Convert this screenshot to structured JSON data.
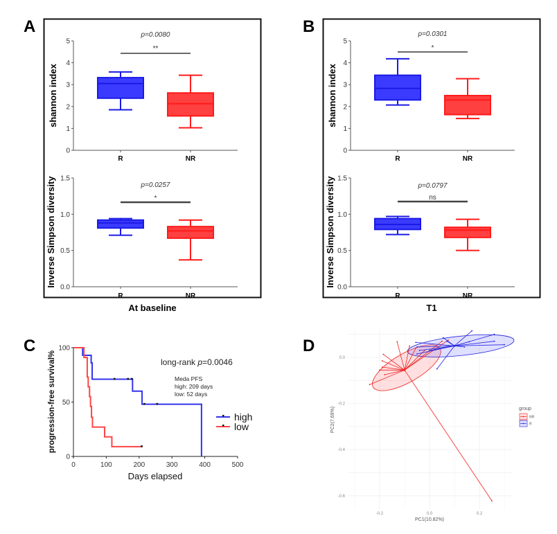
{
  "colors": {
    "R": "#1a1ae6",
    "R_fill": "#3b3bff",
    "NR": "#ff1a1a",
    "NR_fill": "#ff4040",
    "high": "#3333ee",
    "low": "#ff4444"
  },
  "chart_data": [
    {
      "id": "A-top",
      "panel": "A",
      "type": "box",
      "title": "",
      "xlabel": "",
      "ylabel": "shannon index",
      "ylim": [
        0,
        5
      ],
      "yticks": [
        "0",
        "1",
        "2",
        "3",
        "4",
        "5"
      ],
      "categories": [
        "R",
        "NR"
      ],
      "boxes": [
        {
          "name": "R",
          "min": 1.85,
          "q1": 2.38,
          "median": 3.05,
          "q3": 3.32,
          "max": 3.58
        },
        {
          "name": "NR",
          "min": 1.03,
          "q1": 1.57,
          "median": 2.13,
          "q3": 2.62,
          "max": 3.43
        }
      ],
      "p_value": "p=0.0080",
      "significance": "**"
    },
    {
      "id": "A-bottom",
      "panel": "A",
      "type": "box",
      "title": "",
      "xlabel": "At baseline",
      "ylabel": "Inverse Simpson diversity",
      "ylim": [
        0,
        1.5
      ],
      "yticks": [
        "0.0",
        "0.5",
        "1.0",
        "1.5"
      ],
      "categories": [
        "R",
        "NR"
      ],
      "boxes": [
        {
          "name": "R",
          "min": 0.71,
          "q1": 0.81,
          "median": 0.88,
          "q3": 0.92,
          "max": 0.94
        },
        {
          "name": "NR",
          "min": 0.37,
          "q1": 0.67,
          "median": 0.77,
          "q3": 0.83,
          "max": 0.92
        }
      ],
      "p_value": "p=0.0257",
      "significance": "*"
    },
    {
      "id": "B-top",
      "panel": "B",
      "type": "box",
      "title": "",
      "xlabel": "",
      "ylabel": "shannon index",
      "ylim": [
        0,
        5
      ],
      "yticks": [
        "0",
        "1",
        "2",
        "3",
        "4",
        "5"
      ],
      "categories": [
        "R",
        "NR"
      ],
      "boxes": [
        {
          "name": "R",
          "min": 2.07,
          "q1": 2.3,
          "median": 2.83,
          "q3": 3.43,
          "max": 4.18
        },
        {
          "name": "NR",
          "min": 1.45,
          "q1": 1.63,
          "median": 2.3,
          "q3": 2.5,
          "max": 3.27
        }
      ],
      "p_value": "p=0.0301",
      "significance": "*"
    },
    {
      "id": "B-bottom",
      "panel": "B",
      "type": "box",
      "title": "",
      "xlabel": "T1",
      "ylabel": "Inverse Simpson diversity",
      "ylim": [
        0,
        1.5
      ],
      "yticks": [
        "0.0",
        "0.5",
        "1.0",
        "1.5"
      ],
      "categories": [
        "R",
        "NR"
      ],
      "boxes": [
        {
          "name": "R",
          "min": 0.72,
          "q1": 0.79,
          "median": 0.86,
          "q3": 0.94,
          "max": 0.97
        },
        {
          "name": "NR",
          "min": 0.5,
          "q1": 0.68,
          "median": 0.78,
          "q3": 0.82,
          "max": 0.93
        }
      ],
      "p_value": "p=0.0797",
      "significance": "ns"
    },
    {
      "id": "C",
      "panel": "C",
      "type": "line",
      "subtype": "kaplan-meier",
      "title": "",
      "xlabel": "Days elapsed",
      "ylabel": "progression-free survival%",
      "xlim": [
        0,
        500
      ],
      "ylim": [
        0,
        100
      ],
      "xticks": [
        "0",
        "100",
        "200",
        "300",
        "400",
        "500"
      ],
      "yticks": [
        "0",
        "50",
        "100"
      ],
      "annotation": "long-rank p=0.0046",
      "annotation_prefix": "long-rank ",
      "annotation_p": "p",
      "annotation_suffix": "=0.0046",
      "median_pfs": [
        "Meda PFS",
        "high: 209 days",
        "low: 52 days"
      ],
      "legend": {
        "position": "right",
        "entries": [
          "high",
          "low"
        ]
      },
      "series": [
        {
          "name": "high",
          "steps": [
            [
              0,
              100
            ],
            [
              28,
              100
            ],
            [
              28,
              93
            ],
            [
              54,
              93
            ],
            [
              54,
              86
            ],
            [
              57,
              86
            ],
            [
              57,
              71
            ],
            [
              180,
              71
            ],
            [
              180,
              60
            ],
            [
              209,
              60
            ],
            [
              209,
              48
            ],
            [
              390,
              48
            ],
            [
              390,
              0
            ]
          ],
          "censored": [
            [
              125,
              71
            ],
            [
              166,
              71
            ],
            [
              178,
              71
            ],
            [
              216,
              48
            ],
            [
              255,
              48
            ]
          ]
        },
        {
          "name": "low",
          "steps": [
            [
              0,
              100
            ],
            [
              32,
              100
            ],
            [
              32,
              91
            ],
            [
              42,
              91
            ],
            [
              42,
              73
            ],
            [
              45,
              73
            ],
            [
              45,
              64
            ],
            [
              49,
              64
            ],
            [
              49,
              55
            ],
            [
              52,
              55
            ],
            [
              52,
              46
            ],
            [
              55,
              46
            ],
            [
              55,
              36
            ],
            [
              58,
              36
            ],
            [
              58,
              27
            ],
            [
              95,
              27
            ],
            [
              95,
              18
            ],
            [
              117,
              18
            ],
            [
              117,
              9
            ],
            [
              208,
              9
            ]
          ],
          "censored": [
            [
              208,
              9
            ]
          ]
        }
      ]
    },
    {
      "id": "D",
      "panel": "D",
      "type": "scatter",
      "subtype": "PCoA with centroid spiders and ellipses",
      "title": "",
      "xlabel": "PC1(10.82%)",
      "ylabel": "PC2(7.69%)",
      "xticks": [
        "-0.2",
        "0.0",
        "0.2"
      ],
      "yticks": [
        "0.0",
        "-0.2",
        "-0.4",
        "-0.6"
      ],
      "xlim": [
        -0.3,
        0.35
      ],
      "ylim": [
        -0.65,
        0.12
      ],
      "legend": {
        "title": "group",
        "position": "right",
        "entries": [
          "NR",
          "R"
        ]
      },
      "series": [
        {
          "name": "NR",
          "centroid": [
            -0.1,
            -0.055
          ],
          "ellipse": {
            "cx": -0.092,
            "cy": -0.045,
            "rx": 0.155,
            "ry": 0.062,
            "angle_deg": -30
          },
          "points": [
            [
              -0.24,
              -0.118
            ],
            [
              -0.2,
              -0.055
            ],
            [
              -0.19,
              -0.042
            ],
            [
              -0.18,
              -0.075
            ],
            [
              -0.19,
              -0.015
            ],
            [
              -0.185,
              0.013
            ],
            [
              -0.13,
              0.068
            ],
            [
              -0.08,
              0.05
            ],
            [
              -0.055,
              0.04
            ],
            [
              -0.02,
              0.03
            ],
            [
              0.05,
              0.07
            ],
            [
              0.075,
              0.075
            ],
            [
              0.25,
              -0.622
            ]
          ]
        },
        {
          "name": "R",
          "centroid": [
            0.1,
            0.05
          ],
          "ellipse": {
            "cx": 0.125,
            "cy": 0.05,
            "rx": 0.215,
            "ry": 0.042,
            "angle_deg": -6
          },
          "points": [
            [
              -0.055,
              0.065
            ],
            [
              -0.05,
              0.045
            ],
            [
              -0.05,
              0.015
            ],
            [
              -0.04,
              0.03
            ],
            [
              0.0,
              0.03
            ],
            [
              0.03,
              -0.05
            ],
            [
              0.055,
              0.085
            ],
            [
              0.07,
              0.07
            ],
            [
              0.16,
              0.068
            ],
            [
              0.14,
              0.045
            ],
            [
              0.17,
              0.115
            ],
            [
              0.26,
              0.1
            ],
            [
              0.26,
              0.07
            ],
            [
              0.3,
              0.055
            ]
          ]
        }
      ]
    }
  ],
  "labels": {
    "panel_A": "A",
    "panel_B": "B",
    "panel_C": "C",
    "panel_D": "D"
  }
}
